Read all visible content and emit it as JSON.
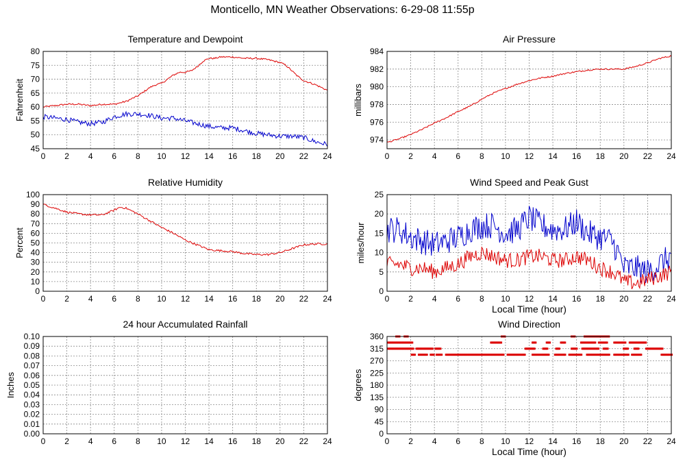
{
  "title": "Monticello, MN Weather Observations: 6-29-08 11:55p",
  "chart_data": [
    {
      "id": "temp",
      "type": "line",
      "title": "Temperature and Dewpoint",
      "xlabel": "",
      "ylabel": "Fahrenheit",
      "xlim": [
        0,
        24
      ],
      "ylim": [
        45,
        80
      ],
      "xticks": [
        0,
        2,
        4,
        6,
        8,
        10,
        12,
        14,
        16,
        18,
        20,
        22,
        24
      ],
      "yticks": [
        45,
        50,
        55,
        60,
        65,
        70,
        75,
        80
      ],
      "grid": true,
      "series": [
        {
          "color": "#dd0000",
          "noise": 0.3,
          "x": [
            0,
            1,
            2,
            3,
            4,
            5,
            6,
            6.5,
            7,
            7.5,
            8,
            8.5,
            9,
            9.5,
            10,
            10.5,
            11,
            11.5,
            12,
            12.5,
            13,
            13.5,
            14,
            14.5,
            15,
            16,
            17,
            18,
            19,
            20,
            20.5,
            21,
            21.5,
            22,
            23,
            24
          ],
          "y": [
            60,
            60.5,
            61,
            61,
            60.5,
            61,
            61,
            61.5,
            62,
            63,
            64,
            65.5,
            67,
            68,
            68.5,
            70,
            71.5,
            72.5,
            72.5,
            73,
            74.5,
            76.5,
            77.5,
            77.5,
            78,
            78,
            77.5,
            77.5,
            77,
            76,
            75,
            73,
            71,
            69.5,
            68,
            66
          ]
        },
        {
          "color": "#0000cc",
          "noise": 0.9,
          "x": [
            0,
            1,
            2,
            3,
            4,
            5,
            6,
            7,
            8,
            9,
            10,
            11,
            12,
            13,
            14,
            15,
            16,
            17,
            18,
            19,
            20,
            21,
            22,
            23,
            24
          ],
          "y": [
            56.5,
            56,
            55.5,
            54.5,
            54,
            54.5,
            56.5,
            57.5,
            57.5,
            57,
            56,
            56,
            55,
            54,
            53,
            52.5,
            52.5,
            51.5,
            50.5,
            50,
            49.5,
            49.5,
            49,
            47.5,
            46.5
          ]
        }
      ]
    },
    {
      "id": "pressure",
      "type": "line",
      "title": "Air Pressure",
      "xlabel": "",
      "ylabel": "millibars",
      "xlim": [
        0,
        24
      ],
      "ylim": [
        973,
        984
      ],
      "xticks": [
        0,
        2,
        4,
        6,
        8,
        10,
        12,
        14,
        16,
        18,
        20,
        22,
        24
      ],
      "yticks": [
        974,
        976,
        978,
        980,
        982,
        984
      ],
      "grid": true,
      "series": [
        {
          "color": "#dd0000",
          "noise": 0.08,
          "x": [
            0,
            1,
            2,
            3,
            4,
            5,
            6,
            7,
            8,
            9,
            10,
            11,
            12,
            13,
            14,
            15,
            16,
            17,
            18,
            19,
            20,
            21,
            22,
            23,
            24
          ],
          "y": [
            973.7,
            974.1,
            974.6,
            975.2,
            975.9,
            976.5,
            977.2,
            977.8,
            978.6,
            979.3,
            979.8,
            980.3,
            980.7,
            981.0,
            981.2,
            981.5,
            981.7,
            981.9,
            982.0,
            982.0,
            982.0,
            982.3,
            982.7,
            983.2,
            983.5
          ]
        }
      ]
    },
    {
      "id": "humidity",
      "type": "line",
      "title": "Relative Humidity",
      "xlabel": "",
      "ylabel": "Percent",
      "xlim": [
        0,
        24
      ],
      "ylim": [
        0,
        100
      ],
      "xticks": [
        0,
        2,
        4,
        6,
        8,
        10,
        12,
        14,
        16,
        18,
        20,
        22,
        24
      ],
      "yticks": [
        0,
        10,
        20,
        30,
        40,
        50,
        60,
        70,
        80,
        90,
        100
      ],
      "grid": true,
      "series": [
        {
          "color": "#dd0000",
          "noise": 1.0,
          "x": [
            0,
            1,
            2,
            3,
            4,
            5,
            6,
            6.5,
            7,
            8,
            9,
            10,
            11,
            12,
            13,
            14,
            15,
            16,
            17,
            18,
            19,
            20,
            21,
            22,
            23,
            24
          ],
          "y": [
            90,
            86,
            82,
            80,
            79,
            79,
            84,
            87,
            86,
            80,
            73,
            66,
            60,
            53,
            48,
            43,
            42,
            41,
            39,
            38,
            38,
            40,
            44,
            48,
            49,
            49
          ]
        }
      ]
    },
    {
      "id": "wind",
      "type": "line",
      "title": "Wind Speed and Peak Gust",
      "xlabel": "Local Time (hour)",
      "ylabel": "miles/hour",
      "xlim": [
        0,
        24
      ],
      "ylim": [
        0,
        25
      ],
      "xticks": [
        0,
        2,
        4,
        6,
        8,
        10,
        12,
        14,
        16,
        18,
        20,
        22,
        24
      ],
      "yticks": [
        0,
        5,
        10,
        15,
        20,
        25
      ],
      "grid": true,
      "series": [
        {
          "color": "#0000cc",
          "noise": 3.5,
          "x": [
            0,
            1,
            2,
            3,
            4,
            5,
            6,
            7,
            8,
            9,
            10,
            11,
            12,
            13,
            14,
            15,
            16,
            17,
            18,
            19,
            19.5,
            20,
            21,
            22,
            23,
            24
          ],
          "y": [
            16,
            16,
            14,
            13,
            12,
            13,
            14,
            16,
            17,
            17,
            15,
            16,
            19,
            17,
            16,
            16,
            18,
            15,
            14,
            13,
            10,
            6,
            6,
            5,
            7,
            9
          ]
        },
        {
          "color": "#dd0000",
          "noise": 2.0,
          "x": [
            0,
            1,
            2,
            3,
            4,
            5,
            6,
            7,
            8,
            9,
            10,
            11,
            12,
            13,
            14,
            15,
            16,
            17,
            18,
            19,
            19.5,
            20,
            21,
            22,
            23,
            24
          ],
          "y": [
            7,
            7,
            6,
            6,
            5,
            6,
            7,
            9,
            10,
            9,
            8,
            8,
            9,
            9,
            8,
            8,
            9,
            8,
            6,
            5,
            4,
            2.5,
            2,
            3,
            4,
            5
          ]
        }
      ]
    },
    {
      "id": "rain",
      "type": "line",
      "title": "24 hour Accumulated Rainfall",
      "xlabel": "",
      "ylabel": "Inches",
      "xlim": [
        0,
        24
      ],
      "ylim": [
        0,
        0.1
      ],
      "xticks": [
        0,
        2,
        4,
        6,
        8,
        10,
        12,
        14,
        16,
        18,
        20,
        22,
        24
      ],
      "yticks": [
        "0.00",
        "0.01",
        "0.02",
        "0.03",
        "0.04",
        "0.05",
        "0.06",
        "0.07",
        "0.08",
        "0.09",
        "0.10"
      ],
      "grid": true,
      "series": [
        {
          "color": "#dd0000",
          "noise": 0,
          "x": [
            0,
            24
          ],
          "y": [
            0,
            0
          ]
        }
      ]
    },
    {
      "id": "direction",
      "type": "scatter",
      "title": "Wind Direction",
      "xlabel": "Local Time (hour)",
      "ylabel": "degrees",
      "xlim": [
        0,
        24
      ],
      "ylim": [
        0,
        360
      ],
      "xticks": [
        0,
        2,
        4,
        6,
        8,
        10,
        12,
        14,
        16,
        18,
        20,
        22,
        24
      ],
      "yticks": [
        0,
        45,
        90,
        135,
        180,
        225,
        270,
        315,
        360
      ],
      "grid": true,
      "series": [
        {
          "color": "#dd0000",
          "value": 292.5,
          "ranges": [
            [
              2,
              2.3
            ],
            [
              2.6,
              3.3
            ],
            [
              3.6,
              3.9
            ],
            [
              4.1,
              4.6
            ],
            [
              4.9,
              9.8
            ],
            [
              10.1,
              11.6
            ],
            [
              12.2,
              13.6
            ],
            [
              14.1,
              15.0
            ],
            [
              15.3,
              16.4
            ],
            [
              16.8,
              18.7
            ],
            [
              19.1,
              20.3
            ],
            [
              20.6,
              21.4
            ],
            [
              23.1,
              24
            ]
          ]
        },
        {
          "color": "#dd0000",
          "value": 315,
          "ranges": [
            [
              0,
              2.2
            ],
            [
              2.4,
              3.8
            ],
            [
              4.0,
              4.5
            ],
            [
              11.6,
              12.4
            ],
            [
              13.1,
              13.5
            ],
            [
              14.2,
              14.5
            ],
            [
              15.5,
              16.0
            ],
            [
              16.4,
              17.8
            ],
            [
              18.2,
              18.6
            ],
            [
              19.9,
              20.3
            ],
            [
              20.8,
              21.2
            ],
            [
              21.8,
              23.2
            ]
          ]
        },
        {
          "color": "#dd0000",
          "value": 337.5,
          "ranges": [
            [
              0,
              2.1
            ],
            [
              8.7,
              9.6
            ],
            [
              12.2,
              12.5
            ],
            [
              13.4,
              13.7
            ],
            [
              14.6,
              15.0
            ],
            [
              16.3,
              17.5
            ],
            [
              17.8,
              18.5
            ],
            [
              19.1,
              20.1
            ],
            [
              20.4,
              21.8
            ]
          ]
        },
        {
          "color": "#dd0000",
          "value": 360,
          "ranges": [
            [
              0.7,
              1.0
            ],
            [
              1.4,
              1.7
            ],
            [
              9.6,
              9.9
            ],
            [
              15.5,
              15.8
            ],
            [
              16.6,
              18.7
            ]
          ]
        }
      ]
    }
  ]
}
